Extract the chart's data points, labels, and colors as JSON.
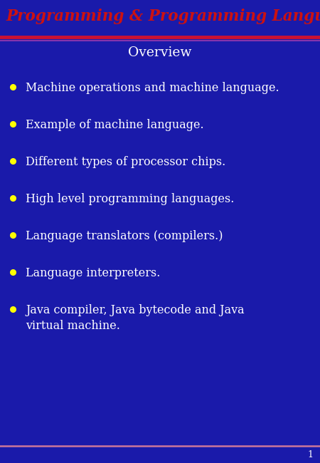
{
  "title": "Programming & Programming Languages",
  "subtitle": "Overview",
  "bullet_points": [
    "Machine operations and machine language.",
    "Example of machine language.",
    "Different types of processor chips.",
    "High level programming languages.",
    "Language translators (compilers.)",
    "Language interpreters.",
    "Java compiler, Java bytecode and Java\nvirtual machine."
  ],
  "bg_color": "#1a1aaa",
  "title_color": "#cc1111",
  "subtitle_color": "#ffffff",
  "bullet_color": "#ffffff",
  "bullet_dot_color": "#ffff00",
  "sep_color_1": "#cc2244",
  "sep_color_2": "#9944aa",
  "footer_bar_color": "#1a1aaa",
  "footer_line_color": "#cc6688",
  "footer_text": "1",
  "footer_text_color": "#ffffff",
  "title_fontsize": 15.5,
  "subtitle_fontsize": 13.5,
  "bullet_fontsize": 11.5,
  "footer_fontsize": 9
}
